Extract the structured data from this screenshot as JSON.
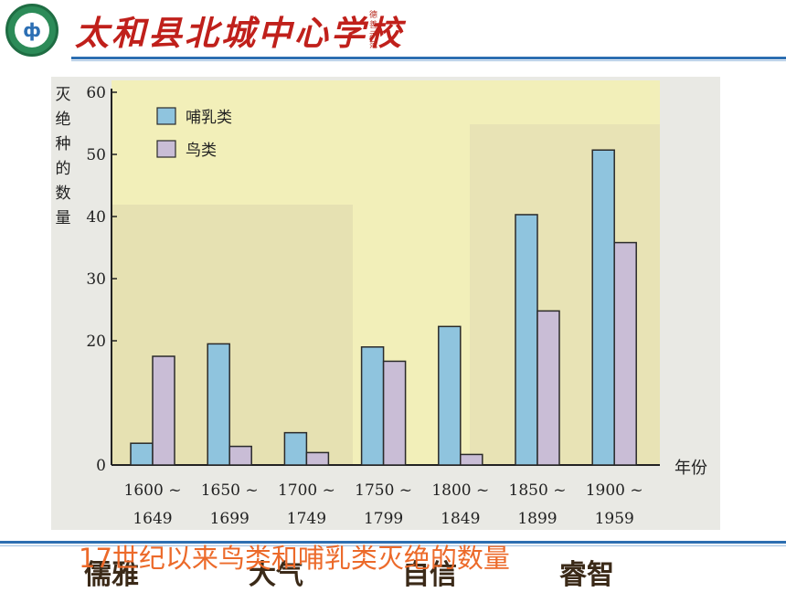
{
  "header": {
    "logo_text": "ф",
    "school_name": "太和县北城中心学校",
    "motto": "德善示范"
  },
  "footer": {
    "words": [
      "儒雅",
      "大气",
      "自信",
      "睿智"
    ]
  },
  "chart_data": {
    "type": "bar",
    "title": "17世纪以来鸟类和哺乳类灭绝的数量",
    "ylabel": "灭绝种的数量",
    "xlabel": "年份",
    "ylim": [
      0,
      60
    ],
    "yticks": [
      0,
      20,
      30,
      40,
      50,
      60
    ],
    "categories": [
      [
        "1600 ~",
        "1649"
      ],
      [
        "1650 ~",
        "1699"
      ],
      [
        "1700 ~",
        "1749"
      ],
      [
        "1750 ~",
        "1799"
      ],
      [
        "1800 ~",
        "1849"
      ],
      [
        "1850 ~",
        "1899"
      ],
      [
        "1900 ~",
        "1959"
      ]
    ],
    "series": [
      {
        "name": "哺乳类",
        "color": "#8fc4de",
        "values": [
          3.5,
          19.5,
          5.2,
          19,
          22.3,
          40.3,
          50.7
        ]
      },
      {
        "name": "鸟类",
        "color": "#c9bdd6",
        "values": [
          17.5,
          3,
          2,
          16.7,
          1.7,
          24.8,
          35.8
        ]
      }
    ],
    "legend": "top-left",
    "grid": false
  }
}
